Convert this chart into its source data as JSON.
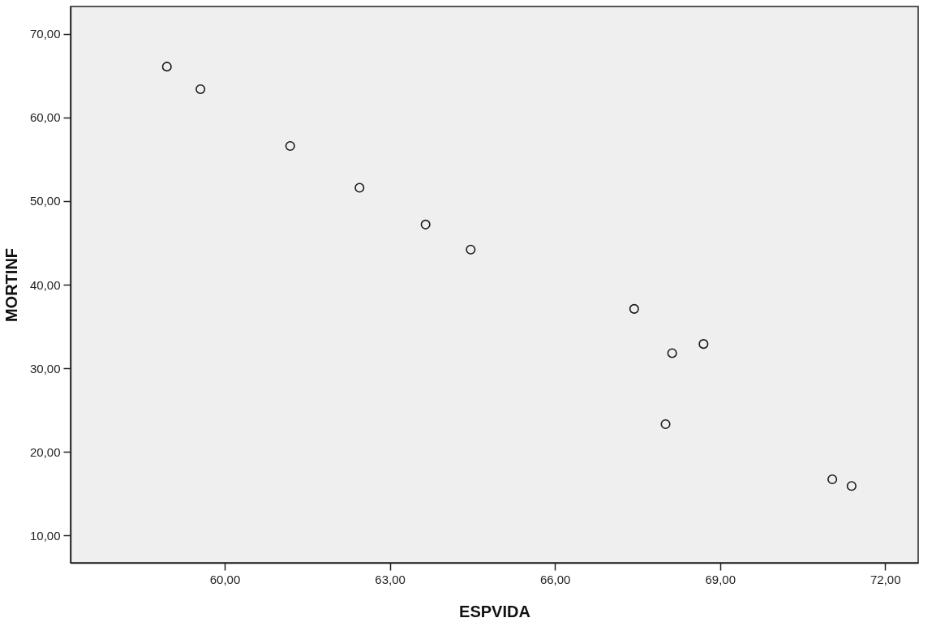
{
  "chart_data": {
    "type": "scatter",
    "xlabel": "ESPVIDA",
    "ylabel": "MORTINF",
    "x": [
      58.95,
      59.56,
      61.19,
      62.45,
      63.65,
      64.47,
      67.44,
      68.13,
      68.7,
      68.01,
      71.04,
      71.39
    ],
    "series": [
      {
        "color": "#1a1a1a",
        "values": [
          66.1,
          63.4,
          56.6,
          51.6,
          47.2,
          44.2,
          37.1,
          31.8,
          32.9,
          23.3,
          16.7,
          15.9
        ]
      }
    ],
    "xlim": [
      57.2,
      72.6
    ],
    "ylim": [
      6.7,
      73.3
    ],
    "xticks": [
      {
        "value": 60,
        "label": "60,00"
      },
      {
        "value": 63,
        "label": "63,00"
      },
      {
        "value": 66,
        "label": "66,00"
      },
      {
        "value": 69,
        "label": "69,00"
      },
      {
        "value": 72,
        "label": "72,00"
      }
    ],
    "yticks": [
      {
        "value": 10,
        "label": "10,00"
      },
      {
        "value": 20,
        "label": "20,00"
      },
      {
        "value": 30,
        "label": "30,00"
      },
      {
        "value": 40,
        "label": "40,00"
      },
      {
        "value": 50,
        "label": "50,00"
      },
      {
        "value": 60,
        "label": "60,00"
      },
      {
        "value": 70,
        "label": "70,00"
      }
    ],
    "marker": "circle",
    "grid": false
  }
}
